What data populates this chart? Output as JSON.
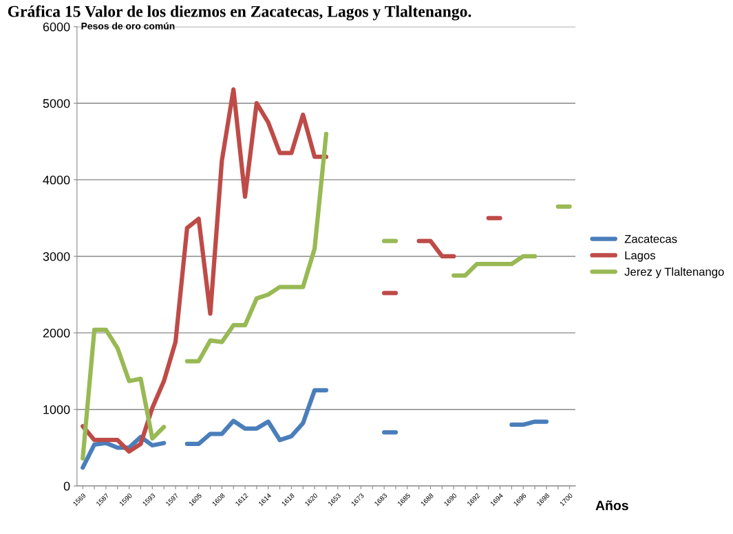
{
  "chart_data": {
    "type": "line",
    "title": "Gráfica 15 Valor de los diezmos en Zacatecas, Lagos y Tlaltenango.",
    "ylabel": "Pesos de oro común",
    "xlabel": "Años",
    "categories": [
      "1569",
      null,
      "1587",
      null,
      "1590",
      null,
      "1593",
      null,
      "1597",
      null,
      "1605",
      null,
      "1608",
      null,
      "1612",
      null,
      "1614",
      null,
      "1618",
      null,
      "1620",
      null,
      "1653",
      null,
      "1673",
      null,
      "1683",
      null,
      "1685",
      null,
      "1688",
      null,
      "1690",
      null,
      "1692",
      null,
      "1694",
      null,
      "1696",
      null,
      "1698",
      null,
      "1700"
    ],
    "series": [
      {
        "name": "Zacatecas",
        "color": "#4a7ebb",
        "values": [
          240,
          540,
          560,
          500,
          500,
          640,
          530,
          560,
          null,
          550,
          550,
          680,
          680,
          850,
          750,
          750,
          840,
          600,
          650,
          820,
          1250,
          1250,
          null,
          null,
          null,
          null,
          700,
          700,
          null,
          null,
          null,
          null,
          null,
          null,
          null,
          null,
          null,
          800,
          800,
          840,
          840,
          null,
          null
        ]
      },
      {
        "name": "Lagos",
        "color": "#be4b48",
        "values": [
          780,
          600,
          600,
          600,
          450,
          550,
          1020,
          1370,
          1880,
          3370,
          3490,
          2250,
          4250,
          5180,
          3780,
          5000,
          4750,
          4350,
          4350,
          4850,
          4300,
          4300,
          null,
          null,
          null,
          null,
          2520,
          2520,
          null,
          3200,
          3200,
          3000,
          3000,
          null,
          null,
          3500,
          3500,
          null,
          null,
          null,
          null,
          null,
          null
        ]
      },
      {
        "name": "Jerez y Tlaltenango",
        "color": "#98b954",
        "values": [
          360,
          2040,
          2040,
          1800,
          1370,
          1400,
          620,
          770,
          null,
          1630,
          1630,
          1900,
          1880,
          2100,
          2100,
          2450,
          2500,
          2600,
          2600,
          2600,
          3100,
          4600,
          null,
          null,
          null,
          null,
          3200,
          3200,
          null,
          null,
          null,
          null,
          2750,
          2750,
          2900,
          2900,
          2900,
          2900,
          3000,
          3000,
          null,
          3650,
          3650
        ]
      }
    ],
    "ylim": [
      0,
      6000
    ],
    "yticks": [
      0,
      1000,
      2000,
      3000,
      4000,
      5000,
      6000
    ],
    "grid": "y",
    "legend": "right",
    "marker": "none",
    "line_style": "solid"
  }
}
